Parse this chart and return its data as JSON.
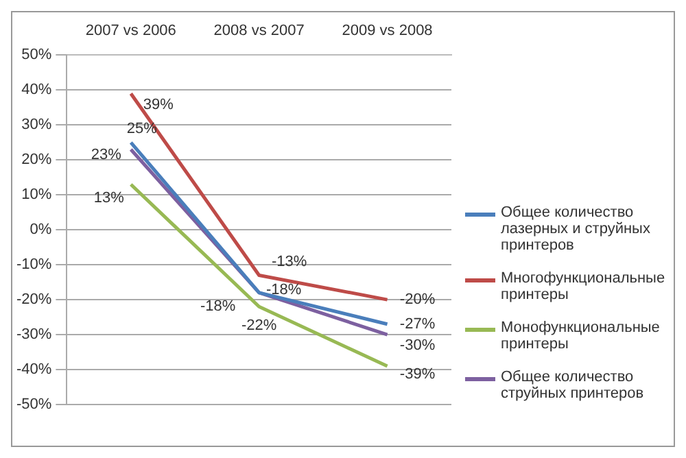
{
  "chart_data": {
    "type": "line",
    "categories": [
      "2007 vs 2006",
      "2008 vs 2007",
      "2009 vs 2008"
    ],
    "series": [
      {
        "name": "Общее количество лазерных и струйных принтеров",
        "color": "#4a7ebb",
        "values": [
          25,
          -18,
          -27
        ],
        "value_labels": [
          "25%",
          "-18%",
          "-27%"
        ]
      },
      {
        "name": "Многофункциональные принтеры",
        "color": "#be4b48",
        "values": [
          39,
          -13,
          -20
        ],
        "value_labels": [
          "39%",
          "-13%",
          "-20%"
        ]
      },
      {
        "name": "Монофункциональные принтеры",
        "color": "#98b954",
        "values": [
          13,
          -22,
          -39
        ],
        "value_labels": [
          "13%",
          "-22%",
          "-39%"
        ]
      },
      {
        "name": "Общее количество струйных принтеров",
        "color": "#7d60a0",
        "values": [
          23,
          -18,
          -30
        ],
        "value_labels": [
          "23%",
          "-18%",
          "-30%"
        ]
      }
    ],
    "ylim": [
      -50,
      50
    ],
    "yticks": [
      {
        "value": -50,
        "label": "-50%"
      },
      {
        "value": -40,
        "label": "-40%"
      },
      {
        "value": -30,
        "label": "-30%"
      },
      {
        "value": -20,
        "label": "-20%"
      },
      {
        "value": -10,
        "label": "-10%"
      },
      {
        "value": 0,
        "label": "0%"
      },
      {
        "value": 10,
        "label": "10%"
      },
      {
        "value": 20,
        "label": "20%"
      },
      {
        "value": 30,
        "label": "30%"
      },
      {
        "value": 40,
        "label": "40%"
      },
      {
        "value": 50,
        "label": "50%"
      }
    ],
    "grid": "y",
    "legend": "right",
    "marker": "none",
    "line_style": "solid"
  }
}
